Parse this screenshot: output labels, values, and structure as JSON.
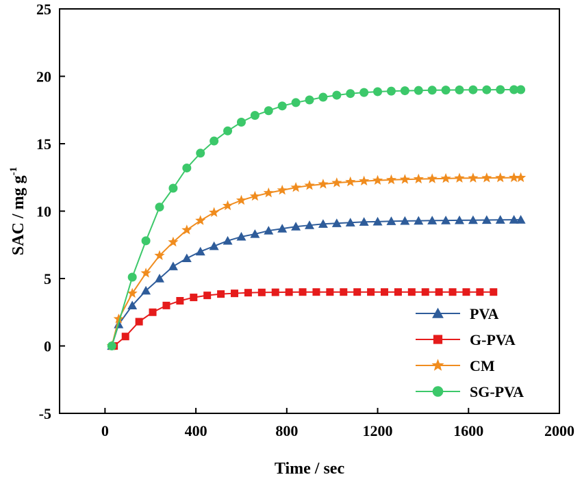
{
  "chart_data": {
    "type": "line",
    "xlabel": "Time / sec",
    "ylabel": "SAC / mg g",
    "ylabel_sup": "-1",
    "xlim": [
      -200,
      2000
    ],
    "ylim": [
      -5,
      25
    ],
    "xticks": [
      "0",
      "400",
      "800",
      "1200",
      "1600",
      "2000"
    ],
    "xtick_values": [
      0,
      400,
      800,
      1200,
      1600,
      2000
    ],
    "yticks": [
      "-5",
      "0",
      "5",
      "10",
      "15",
      "20",
      "25"
    ],
    "ytick_values": [
      -5,
      0,
      5,
      10,
      15,
      20,
      25
    ],
    "grid": false,
    "legend_position": "bottom-right",
    "series": [
      {
        "name": "PVA",
        "color": "#2e5c9a",
        "marker": "triangle",
        "x": [
          30,
          60,
          120,
          180,
          240,
          300,
          360,
          420,
          480,
          540,
          600,
          660,
          720,
          780,
          840,
          900,
          960,
          1020,
          1080,
          1140,
          1200,
          1260,
          1320,
          1380,
          1440,
          1500,
          1560,
          1620,
          1680,
          1740,
          1800,
          1830
        ],
        "y": [
          0,
          1.6,
          3.0,
          4.1,
          5.0,
          5.9,
          6.5,
          7.0,
          7.4,
          7.8,
          8.1,
          8.3,
          8.55,
          8.7,
          8.85,
          8.95,
          9.05,
          9.1,
          9.15,
          9.2,
          9.22,
          9.25,
          9.27,
          9.28,
          9.3,
          9.31,
          9.32,
          9.33,
          9.34,
          9.35,
          9.36,
          9.36
        ]
      },
      {
        "name": "G-PVA",
        "color": "#e51b1b",
        "marker": "square",
        "x": [
          40,
          90,
          150,
          210,
          270,
          330,
          390,
          450,
          510,
          570,
          630,
          690,
          750,
          810,
          870,
          930,
          990,
          1050,
          1110,
          1170,
          1230,
          1290,
          1350,
          1410,
          1470,
          1530,
          1590,
          1650,
          1710
        ],
        "y": [
          0,
          0.7,
          1.8,
          2.5,
          3.0,
          3.35,
          3.6,
          3.75,
          3.85,
          3.9,
          3.95,
          3.97,
          3.98,
          3.99,
          4.0,
          4.0,
          4.0,
          4.0,
          4.0,
          4.0,
          4.0,
          4.0,
          4.0,
          4.0,
          4.0,
          4.0,
          4.0,
          4.0,
          4.0
        ]
      },
      {
        "name": "CM",
        "color": "#f08c1e",
        "marker": "star",
        "x": [
          30,
          60,
          120,
          180,
          240,
          300,
          360,
          420,
          480,
          540,
          600,
          660,
          720,
          780,
          840,
          900,
          960,
          1020,
          1080,
          1140,
          1200,
          1260,
          1320,
          1380,
          1440,
          1500,
          1560,
          1620,
          1680,
          1740,
          1800,
          1830
        ],
        "y": [
          0,
          2.0,
          3.9,
          5.4,
          6.7,
          7.7,
          8.6,
          9.3,
          9.9,
          10.4,
          10.8,
          11.1,
          11.35,
          11.55,
          11.75,
          11.9,
          12.0,
          12.1,
          12.17,
          12.23,
          12.28,
          12.32,
          12.35,
          12.38,
          12.4,
          12.42,
          12.44,
          12.45,
          12.46,
          12.47,
          12.48,
          12.48
        ]
      },
      {
        "name": "SG-PVA",
        "color": "#3cc86a",
        "marker": "circle",
        "x": [
          30,
          120,
          180,
          240,
          300,
          360,
          420,
          480,
          540,
          600,
          660,
          720,
          780,
          840,
          900,
          960,
          1020,
          1080,
          1140,
          1200,
          1260,
          1320,
          1380,
          1440,
          1500,
          1560,
          1620,
          1680,
          1740,
          1800,
          1830
        ],
        "y": [
          0,
          5.1,
          7.8,
          10.3,
          11.7,
          13.2,
          14.3,
          15.2,
          15.95,
          16.6,
          17.1,
          17.45,
          17.8,
          18.05,
          18.25,
          18.45,
          18.6,
          18.72,
          18.8,
          18.86,
          18.9,
          18.93,
          18.95,
          18.97,
          18.98,
          18.99,
          19.0,
          19.0,
          19.01,
          19.01,
          19.01
        ]
      }
    ]
  }
}
